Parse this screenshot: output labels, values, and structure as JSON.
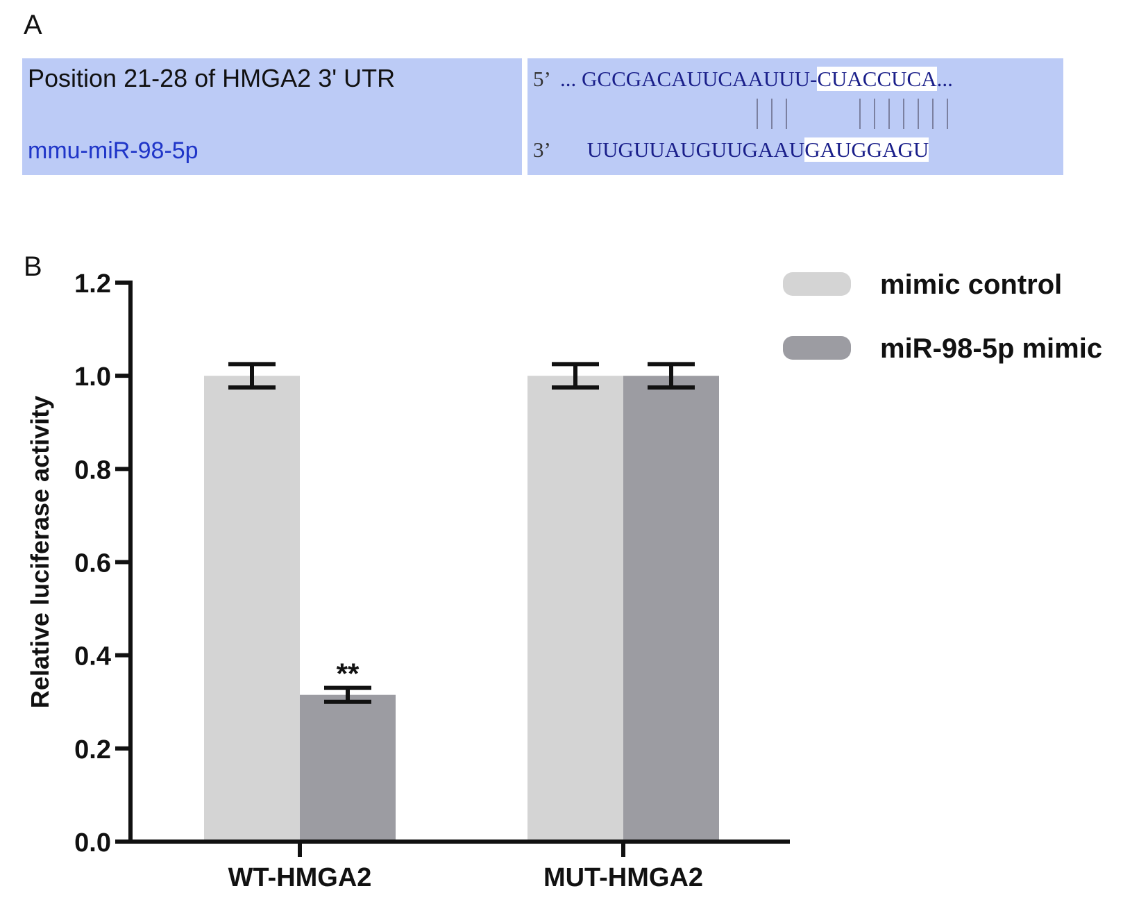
{
  "panel_a": {
    "letter": "A",
    "utr_label": "Position 21-28 of HMGA2 3' UTR",
    "mir_label": "mmu-miR-98-5p",
    "top_prime": "5’",
    "top_prefix": "...",
    "top_seq_plain": "GCCGACAUUCAAUUU",
    "top_dash": "-",
    "top_seq_seed": "CUACCUCA",
    "top_suffix": "...",
    "bottom_prime": "3’",
    "bottom_seq_plain": "UUGUUAUGUUGAAU",
    "bottom_seq_seed": "GAUGGAGU"
  },
  "panel_b": {
    "letter": "B"
  },
  "chart_data": {
    "type": "bar",
    "categories": [
      "WT-HMGA2",
      "MUT-HMGA2"
    ],
    "series": [
      {
        "name": "mimic control",
        "values": [
          1.0,
          1.0
        ],
        "errors": [
          0.025,
          0.025
        ],
        "color": "#d4d4d4"
      },
      {
        "name": "miR-98-5p mimic",
        "values": [
          0.315,
          1.0
        ],
        "errors": [
          0.015,
          0.025
        ],
        "color": "#9c9ca2"
      }
    ],
    "annotations": [
      {
        "category": "WT-HMGA2",
        "series": "miR-98-5p mimic",
        "text": "**"
      }
    ],
    "xlabel": "",
    "ylabel": "Relative luciferase activity",
    "ylim": [
      0,
      1.2
    ],
    "yticks": [
      "0.0",
      "0.2",
      "0.4",
      "0.6",
      "0.8",
      "1.0",
      "1.2"
    ],
    "legend": "top-right",
    "grid": false
  }
}
